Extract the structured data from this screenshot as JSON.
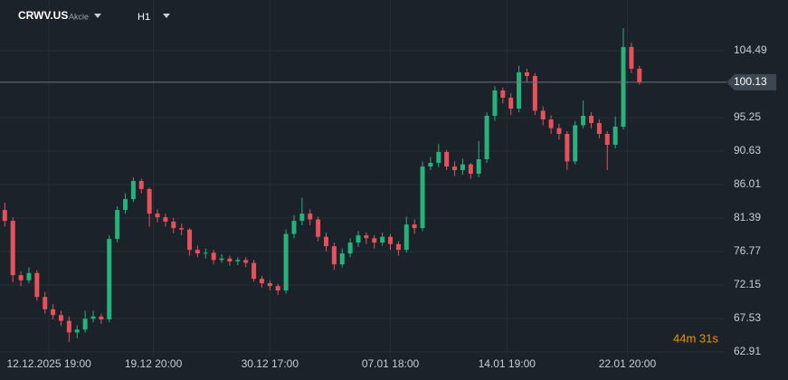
{
  "chart_data": {
    "type": "candlestick",
    "symbol": "CRWV.US",
    "subtitle": "Akcie",
    "timeframe": "H1",
    "timer": "44m 31s",
    "last_price": 100.13,
    "up_color": "#26b27a",
    "down_color": "#e8505b",
    "ylim": [
      62.16,
      111.48
    ],
    "yticks": [
      62.91,
      67.53,
      72.15,
      76.77,
      81.39,
      86.01,
      90.63,
      95.25,
      104.49
    ],
    "xlim": [
      -0.6,
      89.5
    ],
    "xticks": [
      {
        "value": 5.5,
        "label": "12.12.2025 19:00"
      },
      {
        "value": 18.5,
        "label": "19.12 20:00"
      },
      {
        "value": 33,
        "label": "30.12 17:00"
      },
      {
        "value": 48,
        "label": "07.01 18:00"
      },
      {
        "value": 62.5,
        "label": "14.01 19:00"
      },
      {
        "value": 77.5,
        "label": "22.01 20:00"
      }
    ],
    "grid": true,
    "open": [
      82.5,
      81.0,
      73.5,
      72.8,
      73.8,
      70.5,
      68.8,
      68.0,
      67.2,
      65.6,
      66.0,
      67.5,
      67.8,
      67.4,
      78.5,
      82.5,
      84.0,
      86.5,
      85.4,
      82.0,
      81.5,
      80.9,
      80.0,
      79.8,
      77.0,
      76.5,
      76.6,
      75.6,
      75.8,
      75.4,
      75.6,
      75.2,
      73.0,
      72.4,
      72.0,
      71.4,
      79.2,
      81.0,
      82.0,
      81.2,
      78.8,
      77.5,
      75.0,
      76.5,
      78.0,
      79.0,
      78.6,
      78.0,
      78.8,
      77.8,
      77.0,
      80.5,
      80.0,
      88.5,
      89.0,
      90.5,
      88.5,
      88.0,
      88.8,
      87.5,
      89.5,
      95.5,
      99.0,
      98.0,
      96.5,
      101.5,
      101.0,
      96.2,
      95.0,
      93.8,
      93.0,
      89.2,
      94.2,
      95.5,
      94.5,
      93.0,
      91.5,
      94.0,
      105.0,
      102.0
    ],
    "high": [
      83.5,
      81.5,
      74.0,
      74.6,
      74.2,
      71.2,
      69.5,
      68.6,
      67.8,
      66.6,
      68.6,
      68.6,
      68.2,
      79.0,
      83.0,
      84.8,
      87.0,
      86.8,
      85.6,
      82.6,
      82.0,
      81.4,
      80.6,
      80.0,
      77.6,
      77.2,
      77.0,
      76.4,
      76.2,
      76.0,
      76.0,
      75.6,
      73.4,
      72.8,
      72.3,
      79.8,
      81.8,
      84.2,
      82.6,
      81.6,
      79.4,
      78.0,
      77.2,
      78.6,
      79.6,
      79.4,
      79.0,
      79.4,
      79.2,
      78.2,
      81.6,
      81.2,
      89.2,
      89.8,
      91.6,
      90.8,
      89.2,
      89.6,
      89.0,
      92.0,
      96.0,
      99.6,
      99.4,
      98.6,
      102.4,
      102.0,
      101.4,
      96.8,
      95.6,
      94.4,
      93.4,
      94.8,
      97.6,
      96.0,
      95.0,
      93.4,
      95.4,
      107.6,
      105.6,
      102.4
    ],
    "low": [
      80.2,
      72.5,
      72.0,
      72.4,
      70.0,
      68.2,
      67.4,
      66.5,
      64.3,
      64.8,
      65.6,
      67.0,
      66.8,
      67.0,
      78.0,
      82.0,
      83.6,
      84.8,
      80.2,
      80.8,
      80.2,
      79.3,
      79.0,
      76.2,
      76.0,
      75.8,
      75.0,
      75.2,
      74.8,
      74.9,
      74.6,
      72.6,
      71.8,
      71.4,
      70.8,
      71.0,
      78.6,
      80.4,
      80.4,
      78.2,
      76.8,
      74.2,
      74.6,
      76.0,
      77.4,
      77.8,
      77.2,
      77.6,
      77.0,
      76.2,
      76.6,
      79.2,
      79.6,
      88.0,
      88.4,
      88.0,
      87.2,
      87.4,
      86.8,
      87.0,
      89.0,
      94.8,
      97.2,
      95.6,
      96.0,
      100.2,
      95.6,
      94.2,
      93.0,
      92.2,
      88.0,
      88.8,
      93.8,
      93.8,
      92.4,
      88.0,
      91.0,
      93.6,
      101.4,
      99.8
    ],
    "close": [
      81.0,
      73.5,
      72.8,
      73.8,
      70.5,
      68.8,
      68.0,
      67.2,
      65.6,
      66.0,
      67.5,
      67.8,
      67.4,
      78.5,
      82.5,
      84.0,
      86.5,
      85.4,
      82.0,
      81.5,
      80.9,
      80.0,
      79.8,
      77.0,
      76.5,
      76.6,
      75.6,
      75.8,
      75.4,
      75.6,
      75.2,
      73.0,
      72.4,
      72.0,
      71.4,
      79.2,
      81.0,
      82.0,
      81.2,
      78.8,
      77.5,
      75.0,
      76.5,
      78.0,
      79.0,
      78.6,
      78.0,
      78.8,
      77.8,
      77.0,
      80.5,
      80.0,
      88.5,
      89.0,
      90.5,
      88.5,
      88.0,
      88.8,
      87.5,
      89.5,
      95.5,
      99.0,
      98.0,
      96.5,
      101.5,
      101.0,
      96.2,
      95.0,
      93.8,
      93.0,
      89.2,
      94.2,
      95.5,
      94.5,
      93.0,
      91.5,
      94.0,
      105.0,
      102.0,
      100.13
    ]
  }
}
